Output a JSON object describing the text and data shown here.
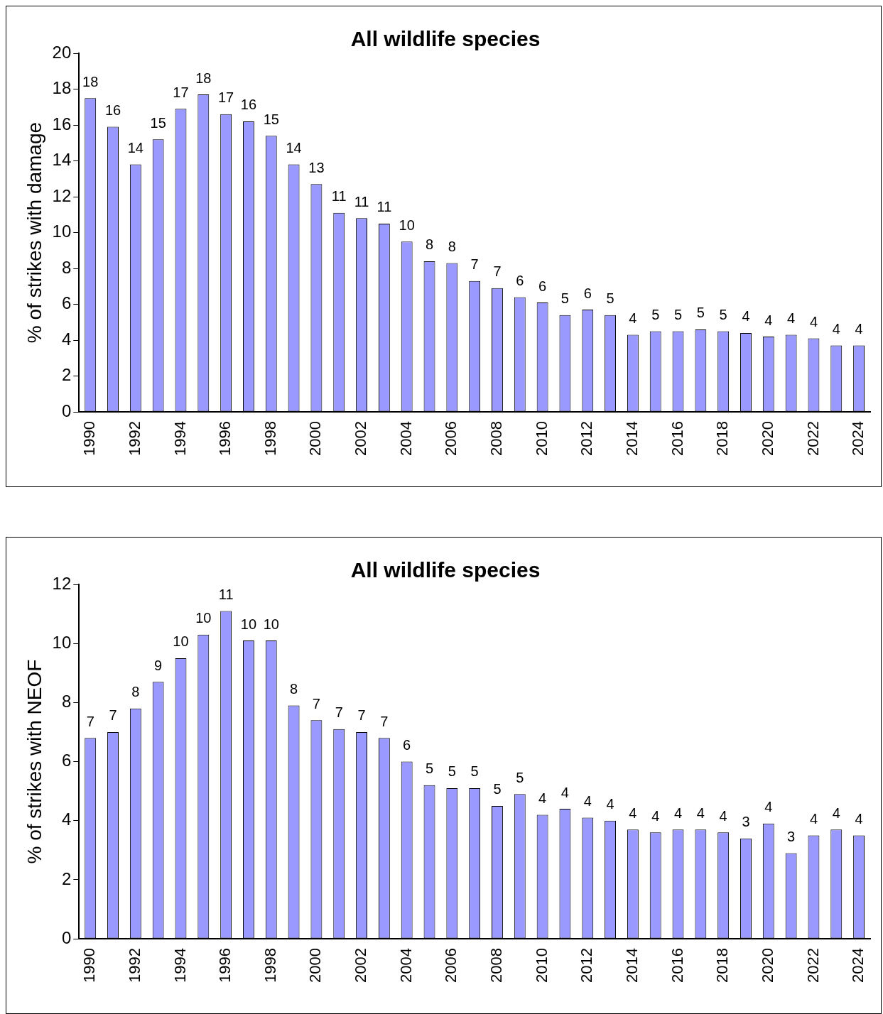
{
  "chart_data": [
    {
      "type": "bar",
      "title": "All wildlife species",
      "ylabel": "% of strikes with damage",
      "categories": [
        "1990",
        null,
        "1992",
        null,
        "1994",
        null,
        "1996",
        null,
        "1998",
        null,
        "2000",
        null,
        "2002",
        null,
        "2004",
        null,
        "2006",
        null,
        "2008",
        null,
        "2010",
        null,
        "2012",
        null,
        "2014",
        null,
        "2016",
        null,
        "2018",
        null,
        "2020",
        null,
        "2022",
        null,
        "2024"
      ],
      "values": [
        17.5,
        15.9,
        13.8,
        15.2,
        16.9,
        17.7,
        16.6,
        16.2,
        15.4,
        13.8,
        12.7,
        11.1,
        10.8,
        10.5,
        9.5,
        8.4,
        8.3,
        7.3,
        6.9,
        6.4,
        6.1,
        5.4,
        5.7,
        5.4,
        4.3,
        4.5,
        4.5,
        4.6,
        4.5,
        4.4,
        4.2,
        4.3,
        4.1,
        3.7,
        3.7
      ],
      "value_labels": [
        "18",
        "16",
        "14",
        "15",
        "17",
        "18",
        "17",
        "16",
        "15",
        "14",
        "13",
        "11",
        "11",
        "11",
        "10",
        "8",
        "8",
        "7",
        "7",
        "6",
        "6",
        "5",
        "6",
        "5",
        "4",
        "5",
        "5",
        "5",
        "5",
        "4",
        "4",
        "4",
        "4",
        "4",
        "4"
      ],
      "color": "#9999ff",
      "ylim": [
        0,
        20
      ],
      "yticks": [
        0,
        2,
        4,
        6,
        8,
        10,
        12,
        14,
        16,
        18,
        20
      ],
      "grid": false,
      "legend": false
    },
    {
      "type": "bar",
      "title": "All wildlife species",
      "ylabel": "% of strikes with NEOF",
      "categories": [
        "1990",
        null,
        "1992",
        null,
        "1994",
        null,
        "1996",
        null,
        "1998",
        null,
        "2000",
        null,
        "2002",
        null,
        "2004",
        null,
        "2006",
        null,
        "2008",
        null,
        "2010",
        null,
        "2012",
        null,
        "2014",
        null,
        "2016",
        null,
        "2018",
        null,
        "2020",
        null,
        "2022",
        null,
        "2024"
      ],
      "values": [
        6.8,
        7.0,
        7.8,
        8.7,
        9.5,
        10.3,
        11.1,
        10.1,
        10.1,
        7.9,
        7.4,
        7.1,
        7.0,
        6.8,
        6.0,
        5.2,
        5.1,
        5.1,
        4.5,
        4.9,
        4.2,
        4.4,
        4.1,
        4.0,
        3.7,
        3.6,
        3.7,
        3.7,
        3.6,
        3.4,
        3.9,
        2.9,
        3.5,
        3.7,
        3.5
      ],
      "value_labels": [
        "7",
        "7",
        "8",
        "9",
        "10",
        "10",
        "11",
        "10",
        "10",
        "8",
        "7",
        "7",
        "7",
        "7",
        "6",
        "5",
        "5",
        "5",
        "5",
        "5",
        "4",
        "4",
        "4",
        "4",
        "4",
        "4",
        "4",
        "4",
        "4",
        "3",
        "4",
        "3",
        "4",
        "4",
        "4"
      ],
      "color": "#9999ff",
      "ylim": [
        0,
        12
      ],
      "yticks": [
        0,
        2,
        4,
        6,
        8,
        10,
        12
      ],
      "grid": false,
      "legend": false
    }
  ]
}
